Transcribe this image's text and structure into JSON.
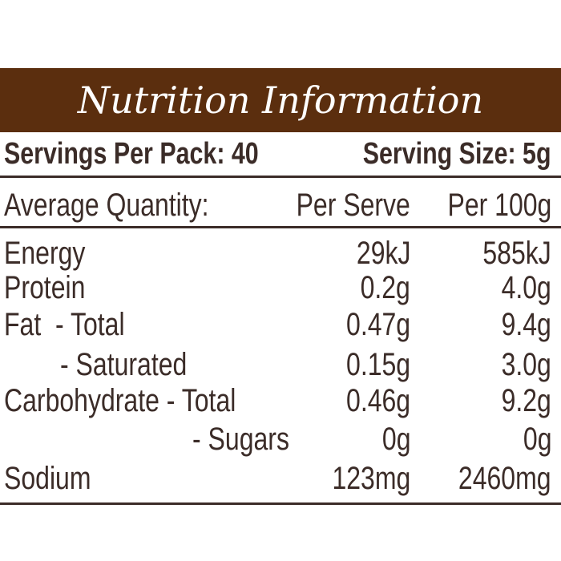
{
  "title": "Nutrition Information",
  "servings": {
    "per_pack": "Servings Per Pack: 40",
    "size": "Serving Size: 5g"
  },
  "table": {
    "header": [
      "Average Quantity:",
      "Per Serve",
      "Per 100g"
    ],
    "rows": [
      [
        "Energy",
        "29kJ",
        "585kJ"
      ],
      [
        "Protein",
        "0.2g",
        "4.0g"
      ],
      [
        "Fat  - Total",
        "0.47g",
        "9.4g"
      ],
      [
        "- Saturated",
        "0.15g",
        "3.0g"
      ],
      [
        "Carbohydrate - Total",
        "0.46g",
        "9.2g"
      ],
      [
        "- Sugars",
        "0g",
        "0g"
      ],
      [
        "Sodium",
        "123mg",
        "2460mg"
      ]
    ]
  }
}
